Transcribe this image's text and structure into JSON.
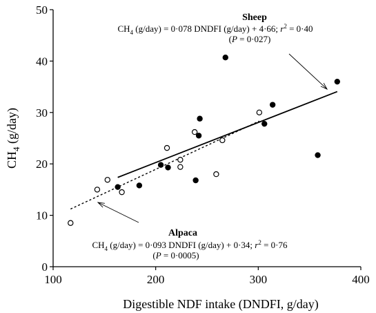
{
  "chart_data": {
    "type": "scatter",
    "xlabel": "Digestible NDF intake (DNDFI, g/day)",
    "ylabel_main": "CH",
    "ylabel_sub": "4",
    "ylabel_tail": " (g/day)",
    "xlim": [
      100,
      400
    ],
    "ylim": [
      0,
      50
    ],
    "xticks": [
      100,
      200,
      300,
      400
    ],
    "yticks": [
      0,
      10,
      20,
      30,
      40,
      50
    ],
    "grid": false,
    "series": [
      {
        "name": "Sheep",
        "marker": "filled-circle",
        "points": [
          {
            "x": 163,
            "y": 15.5
          },
          {
            "x": 184,
            "y": 15.8
          },
          {
            "x": 205,
            "y": 19.8
          },
          {
            "x": 212,
            "y": 19.3
          },
          {
            "x": 239,
            "y": 16.8
          },
          {
            "x": 242,
            "y": 25.5
          },
          {
            "x": 243,
            "y": 28.8
          },
          {
            "x": 268,
            "y": 40.7
          },
          {
            "x": 306,
            "y": 27.8
          },
          {
            "x": 314,
            "y": 31.5
          },
          {
            "x": 358,
            "y": 21.7
          },
          {
            "x": 377,
            "y": 36.0
          }
        ],
        "fit": {
          "slope": 0.078,
          "intercept": 4.66,
          "x_range": [
            163,
            377
          ],
          "line_style": "solid"
        }
      },
      {
        "name": "Alpaca",
        "marker": "open-circle",
        "points": [
          {
            "x": 117,
            "y": 8.5
          },
          {
            "x": 143,
            "y": 15.0
          },
          {
            "x": 153,
            "y": 16.9
          },
          {
            "x": 167,
            "y": 14.5
          },
          {
            "x": 211,
            "y": 23.1
          },
          {
            "x": 224,
            "y": 20.8
          },
          {
            "x": 224,
            "y": 19.4
          },
          {
            "x": 238,
            "y": 26.2
          },
          {
            "x": 259,
            "y": 18.0
          },
          {
            "x": 265,
            "y": 24.6
          },
          {
            "x": 301,
            "y": 30.0
          }
        ],
        "fit": {
          "slope": 0.093,
          "intercept": 0.34,
          "x_range": [
            117,
            301
          ],
          "line_style": "dotted"
        }
      }
    ],
    "annotations": [
      {
        "series": "Sheep",
        "title": "Sheep",
        "eq_prefix": "CH",
        "eq_sub": "4",
        "eq_body": " (g/day) = 0·078 DNDFI (g/day) + 4·66; ",
        "eq_r": "r",
        "eq_sup": "2",
        "eq_tail": " = 0·40",
        "p_open": "(",
        "p_var": "P",
        "p_close": " = 0·027)"
      },
      {
        "series": "Alpaca",
        "title": "Alpaca",
        "eq_prefix": "CH",
        "eq_sub": "4",
        "eq_body": " (g/day) = 0·093 DNDFI (g/day) + 0·34; ",
        "eq_r": "r",
        "eq_sup": "2",
        "eq_tail": " = 0·76",
        "p_open": "(",
        "p_var": "P",
        "p_close": " = 0·0005)"
      }
    ]
  }
}
